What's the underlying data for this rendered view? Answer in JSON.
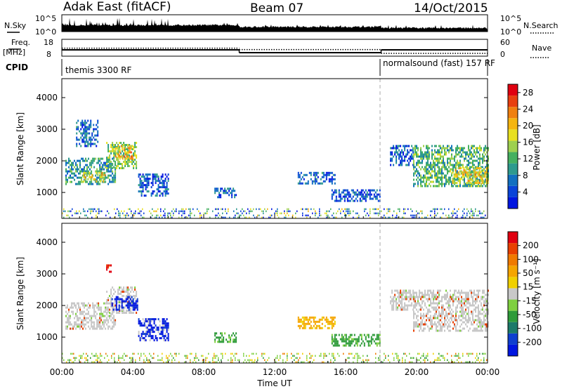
{
  "header": {
    "radar": "Adak East (fitACF)",
    "beam": "Beam 07",
    "date": "14/Oct/2015"
  },
  "scan_panel": {
    "left_label": "N.Sky",
    "right_label": "N.Search",
    "left_ticks": [
      "10^5",
      "10^0"
    ],
    "right_ticks": [
      "10^5",
      "10^0"
    ],
    "nsky_segments": [
      {
        "x0": "00:00",
        "x1": "10:00",
        "level": "high"
      },
      {
        "x0": "10:00",
        "x1": "18:00",
        "level": "mid"
      },
      {
        "x0": "18:00",
        "x1": "24:00",
        "level": "low"
      }
    ]
  },
  "freq_panel": {
    "left_label_1": "Freq.",
    "left_label_2": "[MHz]",
    "right_label": "Nave",
    "left_ticks": [
      "18",
      "8"
    ],
    "right_ticks": [
      "60",
      "0"
    ],
    "freq_segments": [
      {
        "x0_h": 0,
        "x1_h": 10,
        "mhz": 12.5
      },
      {
        "x0_h": 10,
        "x1_h": 18,
        "mhz": 10.5
      },
      {
        "x0_h": 18,
        "x1_h": 24,
        "mhz": 12.5
      }
    ],
    "nave_segments": [
      {
        "x0_h": 0,
        "x1_h": 10,
        "nave": 28
      },
      {
        "x0_h": 10,
        "x1_h": 18,
        "nave": 22
      },
      {
        "x0_h": 18,
        "x1_h": 24,
        "nave": 6
      }
    ]
  },
  "cpid": {
    "label": "CPID",
    "modes": [
      {
        "x0_h": 0,
        "x1_h": 18,
        "name": "themis 3300 RF"
      },
      {
        "x0_h": 18,
        "x1_h": 24,
        "name": "normalsound (fast) 157 RF"
      }
    ]
  },
  "chart_data": [
    {
      "type": "heatmap",
      "title": "",
      "xlabel": "",
      "ylabel": "Slant Range [km]",
      "ylim": [
        180,
        4600
      ],
      "xlim_hours": [
        0,
        24
      ],
      "y_ticks": [
        "1000",
        "2000",
        "3000",
        "4000"
      ],
      "colorbar": {
        "label": "Power [dB]",
        "ticks": [
          "4",
          "8",
          "12",
          "16",
          "20",
          "24",
          "28"
        ],
        "range": [
          0,
          30
        ],
        "colors": [
          "#0016e0",
          "#0a44d8",
          "#1270c0",
          "#2e9a8e",
          "#45b060",
          "#9ed050",
          "#e8e020",
          "#f5b510",
          "#f08010",
          "#e84010",
          "#e00010"
        ]
      },
      "regions": [
        {
          "t0": 0.2,
          "t1": 3.0,
          "r0": 1250,
          "r1": 2100,
          "mean": 10
        },
        {
          "t0": 1.2,
          "t1": 2.4,
          "r0": 1350,
          "r1": 1650,
          "mean": 18
        },
        {
          "t0": 2.5,
          "t1": 4.2,
          "r0": 1800,
          "r1": 2600,
          "mean": 14
        },
        {
          "t0": 3.0,
          "t1": 4.0,
          "r0": 2100,
          "r1": 2500,
          "mean": 20
        },
        {
          "t0": 0.8,
          "t1": 2.0,
          "r0": 2500,
          "r1": 3300,
          "mean": 6
        },
        {
          "t0": 4.3,
          "t1": 6.0,
          "r0": 900,
          "r1": 1600,
          "mean": 5
        },
        {
          "t0": 8.6,
          "t1": 9.8,
          "r0": 850,
          "r1": 1150,
          "mean": 5
        },
        {
          "t0": 13.3,
          "t1": 15.4,
          "r0": 1300,
          "r1": 1650,
          "mean": 6
        },
        {
          "t0": 15.2,
          "t1": 17.9,
          "r0": 750,
          "r1": 1100,
          "mean": 5
        },
        {
          "t0": 18.5,
          "t1": 19.8,
          "r0": 1900,
          "r1": 2500,
          "mean": 5
        },
        {
          "t0": 19.8,
          "t1": 24.0,
          "r0": 1200,
          "r1": 2500,
          "mean": 12
        },
        {
          "t0": 22.0,
          "t1": 24.0,
          "r0": 1300,
          "r1": 1800,
          "mean": 18
        }
      ]
    },
    {
      "type": "heatmap",
      "title": "",
      "xlabel": "Time UT",
      "ylabel": "Slant Range [km]",
      "ylim": [
        180,
        4600
      ],
      "xlim_hours": [
        0,
        24
      ],
      "x_ticks": [
        "00:00",
        "04:00",
        "08:00",
        "12:00",
        "16:00",
        "20:00",
        "00:00"
      ],
      "y_ticks": [
        "1000",
        "2000",
        "3000",
        "4000"
      ],
      "colorbar": {
        "label": "Velocity [m s⁻¹]",
        "ticks": [
          "200",
          "100",
          "50",
          "15",
          "-15",
          "-50",
          "-100",
          "-200"
        ],
        "colors": [
          "#0016e0",
          "#0f3fcf",
          "#1c7a6a",
          "#2e9b3a",
          "#7fd040",
          "#c8c8c8",
          "#f0d000",
          "#f5a500",
          "#f07a00",
          "#e84000",
          "#e00010"
        ]
      },
      "regions": [
        {
          "t0": 0.2,
          "t1": 3.0,
          "r0": 1250,
          "r1": 2100,
          "class": "ground"
        },
        {
          "t0": 2.5,
          "t1": 4.2,
          "r0": 1800,
          "r1": 2600,
          "class": "ground"
        },
        {
          "t0": 2.8,
          "t1": 4.3,
          "r0": 1900,
          "r1": 2300,
          "class": "blue"
        },
        {
          "t0": 2.5,
          "t1": 2.8,
          "r0": 3050,
          "r1": 3300,
          "class": "red"
        },
        {
          "t0": 4.3,
          "t1": 6.0,
          "r0": 900,
          "r1": 1600,
          "class": "blue"
        },
        {
          "t0": 8.6,
          "t1": 9.8,
          "r0": 850,
          "r1": 1150,
          "class": "green"
        },
        {
          "t0": 13.3,
          "t1": 15.4,
          "r0": 1300,
          "r1": 1650,
          "class": "orange"
        },
        {
          "t0": 15.2,
          "t1": 17.9,
          "r0": 750,
          "r1": 1100,
          "class": "green"
        },
        {
          "t0": 18.5,
          "t1": 19.8,
          "r0": 1900,
          "r1": 2500,
          "class": "ground"
        },
        {
          "t0": 19.8,
          "t1": 24.0,
          "r0": 1200,
          "r1": 2500,
          "class": "ground"
        }
      ]
    }
  ]
}
